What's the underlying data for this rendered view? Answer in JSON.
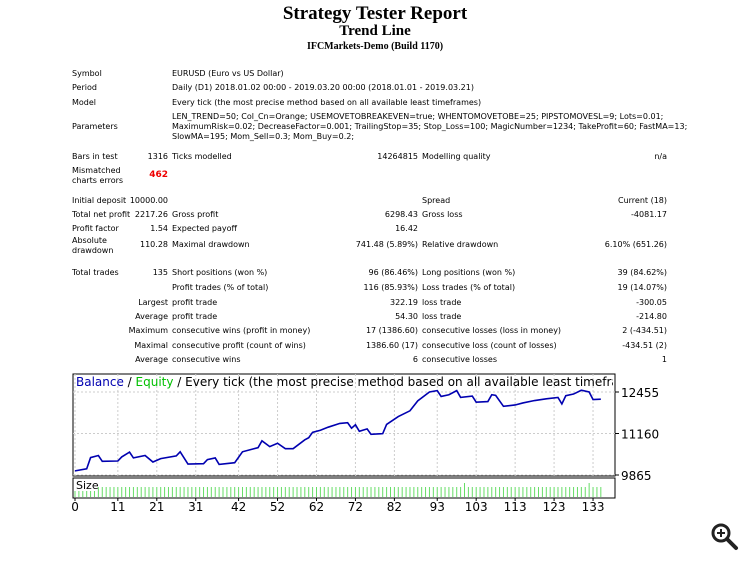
{
  "title": "Strategy Tester Report",
  "subtitle": "Trend Line",
  "server": "IFCMarkets-Demo (Build 1170)",
  "info": {
    "symbol_label": "Symbol",
    "symbol": "EURUSD (Euro vs US Dollar)",
    "period_label": "Period",
    "period": "Daily (D1) 2018.01.02 00:00 - 2019.03.20 00:00 (2018.01.01 - 2019.03.21)",
    "model_label": "Model",
    "model": "Every tick (the most precise method based on all available least timeframes)",
    "params_label": "Parameters",
    "params": [
      "LEN_TREND=50; Col_Cn=Orange; USEMOVETOBREAKEVEN=true; WHENTOMOVETOBE=25; PIPSTOMOVESL=9; Lots=0.01;",
      "MaximumRisk=0.02; DecreaseFactor=0.001; TrailingStop=35; Stop_Loss=100; MagicNumber=1234; TakeProfit=60; FastMA=13;",
      "SlowMA=195; Mom_Sell=0.3; Mom_Buy=0.2;"
    ],
    "bars_label": "Bars in test",
    "bars": "1316",
    "ticks_label": "Ticks modelled",
    "ticks": "14264815",
    "quality_label": "Modelling quality",
    "quality": "n/a",
    "mismatch_label1": "Mismatched",
    "mismatch_label2": "charts errors",
    "mismatch": "462"
  },
  "stats": [
    [
      "Initial deposit",
      "10000.00",
      "",
      "",
      "Spread",
      "Current (18)"
    ],
    [
      "Total net profit",
      "2217.26",
      "Gross profit",
      "6298.43",
      "Gross loss",
      "-4081.17"
    ],
    [
      "Profit factor",
      "1.54",
      "Expected payoff",
      "16.42",
      "",
      ""
    ],
    [
      "Absolute drawdown",
      "110.28",
      "Maximal drawdown",
      "741.48 (5.89%)",
      "Relative drawdown",
      "6.10% (651.26)"
    ],
    [
      "Total trades",
      "135",
      "Short positions (won %)",
      "96 (86.46%)",
      "Long positions (won %)",
      "39 (84.62%)"
    ],
    [
      "",
      "",
      "Profit trades (% of total)",
      "116 (85.93%)",
      "Loss trades (% of total)",
      "19 (14.07%)"
    ],
    [
      "",
      "Largest",
      "profit trade",
      "322.19",
      "loss trade",
      "-300.05"
    ],
    [
      "",
      "Average",
      "profit trade",
      "54.30",
      "loss trade",
      "-214.80"
    ],
    [
      "",
      "Maximum",
      "consecutive wins (profit in money)",
      "17 (1386.60)",
      "consecutive losses (loss in money)",
      "2 (-434.51)"
    ],
    [
      "",
      "Maximal",
      "consecutive profit (count of wins)",
      "1386.60 (17)",
      "consecutive loss (count of losses)",
      "-434.51 (2)"
    ],
    [
      "",
      "Average",
      "consecutive wins",
      "6",
      "consecutive losses",
      "1"
    ]
  ],
  "chart_data": {
    "type": "line",
    "legend": {
      "balance": "Balance",
      "sep1": " / ",
      "equity": "Equity",
      "sep2": " / Every tick (the most precise method based on all available least timeframes to generat"
    },
    "colors": {
      "balance": "#0000b0",
      "equity": "#00c000",
      "size": "#66dd66"
    },
    "ylim": [
      9865,
      12455
    ],
    "yticks": [
      "12455",
      "11160",
      "9865"
    ],
    "xlim": [
      0,
      136
    ],
    "xticks": [
      "0",
      "11",
      "21",
      "31",
      "42",
      "52",
      "62",
      "72",
      "82",
      "93",
      "103",
      "113",
      "123",
      "133"
    ],
    "size_label": "Size",
    "balance": [
      [
        0,
        9993
      ],
      [
        3,
        10057
      ],
      [
        4,
        10409
      ],
      [
        6,
        10473
      ],
      [
        7,
        10291
      ],
      [
        11,
        10302
      ],
      [
        12,
        10430
      ],
      [
        14,
        10579
      ],
      [
        15,
        10398
      ],
      [
        18,
        10473
      ],
      [
        20,
        10270
      ],
      [
        22,
        10377
      ],
      [
        26,
        10462
      ],
      [
        27,
        10590
      ],
      [
        29,
        10206
      ],
      [
        33,
        10217
      ],
      [
        34,
        10345
      ],
      [
        36,
        10398
      ],
      [
        37,
        10195
      ],
      [
        41,
        10249
      ],
      [
        43,
        10590
      ],
      [
        47,
        10718
      ],
      [
        48,
        10931
      ],
      [
        50,
        10750
      ],
      [
        52,
        10856
      ],
      [
        54,
        10686
      ],
      [
        56,
        10686
      ],
      [
        59,
        10963
      ],
      [
        60,
        11027
      ],
      [
        61,
        11197
      ],
      [
        63,
        11261
      ],
      [
        65,
        11357
      ],
      [
        68,
        11475
      ],
      [
        70,
        11496
      ],
      [
        71,
        11325
      ],
      [
        72,
        11432
      ],
      [
        73,
        11229
      ],
      [
        75,
        11304
      ],
      [
        76,
        11134
      ],
      [
        79,
        11155
      ],
      [
        80,
        11443
      ],
      [
        83,
        11688
      ],
      [
        86,
        11869
      ],
      [
        88,
        12178
      ],
      [
        91,
        12455
      ],
      [
        93,
        12498
      ],
      [
        94,
        12317
      ],
      [
        96,
        12370
      ],
      [
        98,
        12498
      ],
      [
        99,
        12285
      ],
      [
        102,
        12327
      ],
      [
        103,
        12136
      ],
      [
        106,
        12157
      ],
      [
        107,
        12370
      ],
      [
        108,
        12349
      ],
      [
        110,
        12008
      ],
      [
        113,
        12050
      ],
      [
        115,
        12114
      ],
      [
        118,
        12189
      ],
      [
        121,
        12242
      ],
      [
        124,
        12285
      ],
      [
        125,
        12082
      ],
      [
        126,
        12338
      ],
      [
        128,
        12391
      ],
      [
        130,
        12509
      ],
      [
        132,
        12455
      ],
      [
        133,
        12221
      ],
      [
        135,
        12232
      ]
    ]
  }
}
